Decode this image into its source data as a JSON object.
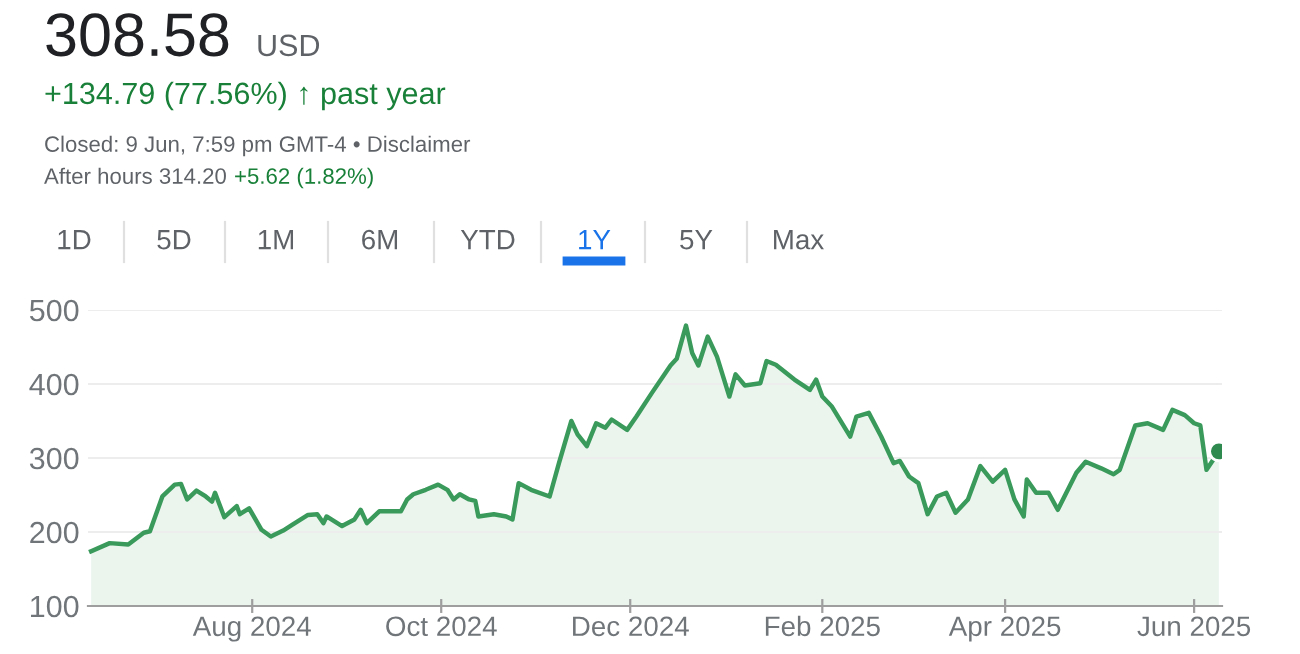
{
  "chart_data": {
    "type": "area",
    "title": "308.58",
    "annotations": [
      "USD",
      "+134.79 (77.56%) ↑ past year",
      "Closed: 9 Jun, 7:59 pm GMT-4 • Disclaimer",
      "After hours 314.20",
      "+5.62 (1.82%)",
      "1D",
      "5D",
      "1M",
      "6M",
      "YTD",
      "1Y",
      "5Y",
      "Max"
    ],
    "series": [
      {
        "color": "#3a9a5b",
        "x": [
          "2024-06-10",
          "2024-06-16",
          "2024-06-22",
          "2024-06-27",
          "2024-06-29",
          "2024-07-03",
          "2024-07-07",
          "2024-07-09",
          "2024-07-11",
          "2024-07-14",
          "2024-07-17",
          "2024-07-19",
          "2024-07-20",
          "2024-07-23",
          "2024-07-27",
          "2024-07-28",
          "2024-07-31",
          "2024-08-04",
          "2024-08-07",
          "2024-08-11",
          "2024-08-14",
          "2024-08-19",
          "2024-08-22",
          "2024-08-24",
          "2024-08-25",
          "2024-08-30",
          "2024-09-03",
          "2024-09-05",
          "2024-09-07",
          "2024-09-11",
          "2024-09-18",
          "2024-09-20",
          "2024-09-22",
          "2024-09-26",
          "2024-09-30",
          "2024-10-03",
          "2024-10-05",
          "2024-10-07",
          "2024-10-10",
          "2024-10-12",
          "2024-10-13",
          "2024-10-18",
          "2024-10-22",
          "2024-10-24",
          "2024-10-26",
          "2024-10-30",
          "2024-11-05",
          "2024-11-08",
          "2024-11-12",
          "2024-11-14",
          "2024-11-17",
          "2024-11-20",
          "2024-11-23",
          "2024-11-25",
          "2024-11-30",
          "2024-12-03",
          "2024-12-08",
          "2024-12-14",
          "2024-12-16",
          "2024-12-19",
          "2024-12-21",
          "2024-12-23",
          "2024-12-26",
          "2024-12-29",
          "2025-01-02",
          "2025-01-04",
          "2025-01-07",
          "2025-01-12",
          "2025-01-14",
          "2025-01-17",
          "2025-01-23",
          "2025-01-28",
          "2025-01-30",
          "2025-02-01",
          "2025-02-04",
          "2025-02-10",
          "2025-02-12",
          "2025-02-16",
          "2025-02-20",
          "2025-02-24",
          "2025-02-26",
          "2025-03-01",
          "2025-03-04",
          "2025-03-07",
          "2025-03-10",
          "2025-03-13",
          "2025-03-16",
          "2025-03-20",
          "2025-03-24",
          "2025-03-28",
          "2025-04-01",
          "2025-04-04",
          "2025-04-07",
          "2025-04-08",
          "2025-04-11",
          "2025-04-15",
          "2025-04-18",
          "2025-04-24",
          "2025-04-27",
          "2025-05-02",
          "2025-05-06",
          "2025-05-08",
          "2025-05-13",
          "2025-05-17",
          "2025-05-22",
          "2025-05-25",
          "2025-05-29",
          "2025-06-01",
          "2025-06-03",
          "2025-06-05",
          "2025-06-09"
        ],
        "values": [
          174,
          185,
          183,
          199,
          201,
          248,
          264,
          265,
          244,
          256,
          248,
          241,
          253,
          220,
          235,
          224,
          232,
          203,
          194,
          202,
          210,
          223,
          224,
          212,
          221,
          208,
          217,
          230,
          212,
          228,
          228,
          244,
          251,
          257,
          264,
          257,
          244,
          251,
          244,
          242,
          221,
          224,
          221,
          217,
          266,
          257,
          248,
          293,
          350,
          332,
          316,
          347,
          341,
          352,
          338,
          356,
          388,
          425,
          434,
          479,
          442,
          425,
          464,
          437,
          383,
          413,
          398,
          401,
          431,
          426,
          406,
          392,
          406,
          383,
          370,
          329,
          356,
          361,
          329,
          293,
          296,
          275,
          266,
          224,
          248,
          253,
          226,
          244,
          289,
          268,
          284,
          244,
          221,
          271,
          253,
          253,
          230,
          280,
          295,
          286,
          278,
          284,
          344,
          347,
          338,
          365,
          358,
          347,
          344,
          284,
          309
        ]
      },
      {
        "type": "scatter",
        "marker": "circle",
        "color": "#2f8a50",
        "x": [
          "2025-06-09"
        ],
        "values": [
          309
        ]
      }
    ],
    "xlim": [
      "2024-06-09",
      "2025-06-10"
    ],
    "xticks": [
      {
        "value": "2024-08-01",
        "label": "Aug 2024"
      },
      {
        "value": "2024-10-01",
        "label": "Oct 2024"
      },
      {
        "value": "2024-12-01",
        "label": "Dec 2024"
      },
      {
        "value": "2025-02-01",
        "label": "Feb 2025"
      },
      {
        "value": "2025-04-01",
        "label": "Apr 2025"
      },
      {
        "value": "2025-06-01",
        "label": "Jun 2025"
      }
    ],
    "ylim": [
      100,
      500
    ],
    "yticks": [
      100,
      200,
      300,
      400,
      500
    ],
    "grid": "y"
  }
}
